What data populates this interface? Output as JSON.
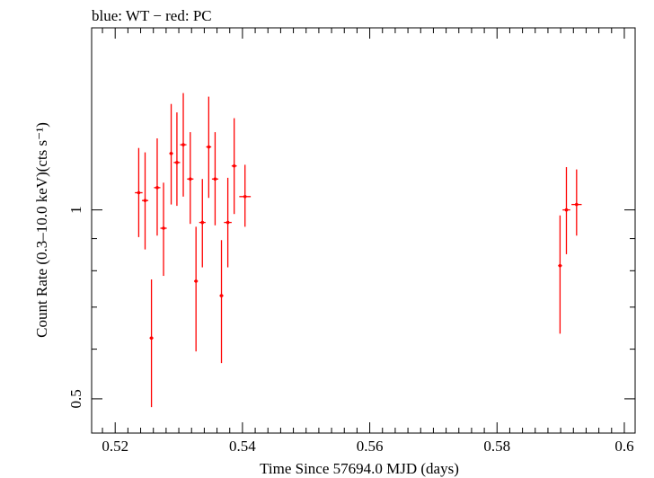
{
  "chart_data": {
    "type": "scatter",
    "title": "blue: WT − red: PC",
    "xlabel": "Time Since 57694.0 MJD (days)",
    "ylabel": "Count Rate (0.3–10.0 keV)(cts s⁻¹)",
    "xlim": [
      0.5163,
      0.6017
    ],
    "ylim": [
      0.441,
      1.95
    ],
    "yscale": "log",
    "grid": false,
    "x_ticks": [
      {
        "value": 0.52,
        "label": "0.52"
      },
      {
        "value": 0.54,
        "label": "0.54"
      },
      {
        "value": 0.56,
        "label": "0.56"
      },
      {
        "value": 0.58,
        "label": "0.58"
      },
      {
        "value": 0.6,
        "label": "0.6"
      }
    ],
    "y_ticks": [
      {
        "value": 0.5,
        "label": "0.5"
      },
      {
        "value": 1,
        "label": "1"
      }
    ],
    "series": [
      {
        "color": "#ff0000",
        "points": [
          {
            "x": 0.5237,
            "xerr": 0.0006,
            "y": 1.065,
            "ylo": 0.905,
            "yhi": 1.255
          },
          {
            "x": 0.5247,
            "xerr": 0.0005,
            "y": 1.035,
            "ylo": 0.865,
            "yhi": 1.235
          },
          {
            "x": 0.5257,
            "xerr": 0.0003,
            "y": 0.625,
            "ylo": 0.485,
            "yhi": 0.775
          },
          {
            "x": 0.5266,
            "xerr": 0.0005,
            "y": 1.085,
            "ylo": 0.91,
            "yhi": 1.3
          },
          {
            "x": 0.5276,
            "xerr": 0.0005,
            "y": 0.935,
            "ylo": 0.785,
            "yhi": 1.105
          },
          {
            "x": 0.5288,
            "xerr": 0.0003,
            "y": 1.23,
            "ylo": 1.02,
            "yhi": 1.475
          },
          {
            "x": 0.5297,
            "xerr": 0.0005,
            "y": 1.19,
            "ylo": 1.015,
            "yhi": 1.43
          },
          {
            "x": 0.5307,
            "xerr": 0.0005,
            "y": 1.27,
            "ylo": 1.05,
            "yhi": 1.535
          },
          {
            "x": 0.5318,
            "xerr": 0.0005,
            "y": 1.12,
            "ylo": 0.95,
            "yhi": 1.33
          },
          {
            "x": 0.5327,
            "xerr": 0.0003,
            "y": 0.77,
            "ylo": 0.595,
            "yhi": 0.94
          },
          {
            "x": 0.5337,
            "xerr": 0.0005,
            "y": 0.955,
            "ylo": 0.81,
            "yhi": 1.12
          },
          {
            "x": 0.5347,
            "xerr": 0.0004,
            "y": 1.26,
            "ylo": 1.045,
            "yhi": 1.515
          },
          {
            "x": 0.5357,
            "xerr": 0.0005,
            "y": 1.12,
            "ylo": 0.945,
            "yhi": 1.33
          },
          {
            "x": 0.5367,
            "xerr": 0.0003,
            "y": 0.73,
            "ylo": 0.57,
            "yhi": 0.895
          },
          {
            "x": 0.5377,
            "xerr": 0.0006,
            "y": 0.955,
            "ylo": 0.81,
            "yhi": 1.125
          },
          {
            "x": 0.5387,
            "xerr": 0.0004,
            "y": 1.175,
            "ylo": 0.985,
            "yhi": 1.4
          },
          {
            "x": 0.5404,
            "xerr": 0.0009,
            "y": 1.05,
            "ylo": 0.94,
            "yhi": 1.18
          },
          {
            "x": 0.5899,
            "xerr": 0.0003,
            "y": 0.815,
            "ylo": 0.635,
            "yhi": 0.98
          },
          {
            "x": 0.5909,
            "xerr": 0.0006,
            "y": 1.0,
            "ylo": 0.85,
            "yhi": 1.17
          },
          {
            "x": 0.5925,
            "xerr": 0.0008,
            "y": 1.02,
            "ylo": 0.91,
            "yhi": 1.16
          }
        ]
      }
    ]
  }
}
